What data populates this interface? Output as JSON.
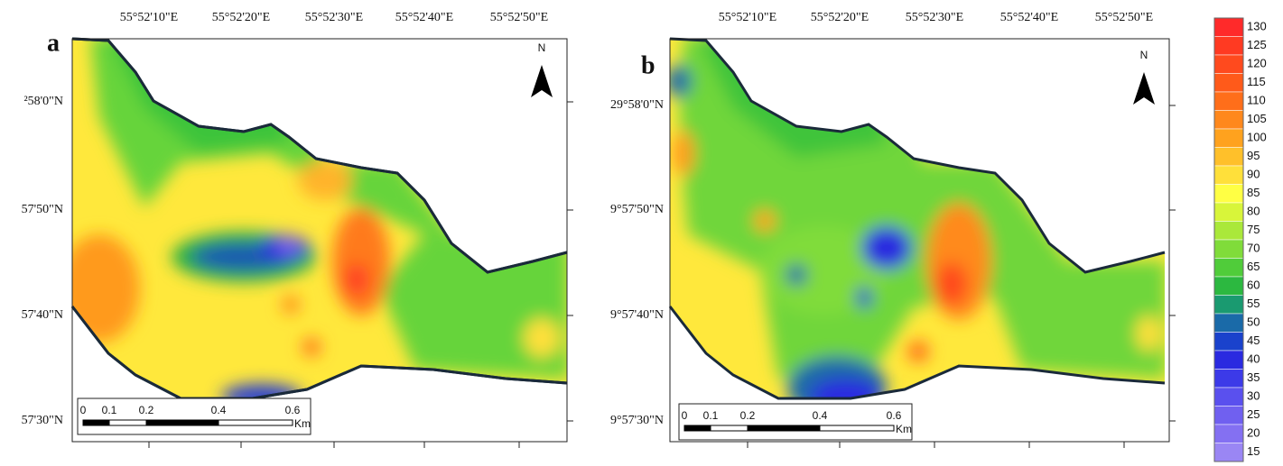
{
  "panels": [
    {
      "label": "a",
      "north": "N",
      "top_ticks": [
        "55°52'10\"E",
        "55°52'20\"E",
        "55°52'30\"E",
        "55°52'40\"E",
        "55°52'50\"E"
      ],
      "left_ticks": [
        "²58'0\"N",
        "57'50\"N",
        "57'40\"N",
        "57'30\"N"
      ],
      "scale_labels": [
        "0",
        "0.1",
        "0.2",
        "0.4",
        "0.6"
      ],
      "scale_unit": "Km"
    },
    {
      "label": "b",
      "north": "N",
      "top_ticks": [
        "55°52'10\"E",
        "55°52'20\"E",
        "55°52'30\"E",
        "55°52'40\"E",
        "55°52'50\"E"
      ],
      "left_ticks": [
        "29°58'0\"N",
        "9°57'50\"N",
        "9°57'40\"N",
        "9°57'30\"N"
      ],
      "scale_labels": [
        "0",
        "0.1",
        "0.2",
        "0.4",
        "0.6"
      ],
      "scale_unit": "Km"
    }
  ],
  "legend": {
    "values": [
      "130",
      "125",
      "120",
      "115",
      "110",
      "105",
      "100",
      "95",
      "90",
      "85",
      "80",
      "75",
      "70",
      "65",
      "60",
      "55",
      "50",
      "45",
      "40",
      "35",
      "30",
      "25",
      "20",
      "15"
    ],
    "colors": [
      "#ff2a2a",
      "#ff3a22",
      "#ff4a1e",
      "#ff5a1a",
      "#ff6e1a",
      "#ff881c",
      "#ffa21e",
      "#ffc02a",
      "#ffe03a",
      "#ffff44",
      "#d8f53a",
      "#aae83a",
      "#80dc3a",
      "#50cc3a",
      "#2cb840",
      "#1a9a70",
      "#1a6aa8",
      "#1a42cc",
      "#2a2ae0",
      "#3c3ae8",
      "#5a50ee",
      "#7060f0",
      "#8470f2",
      "#9a86f4"
    ]
  }
}
